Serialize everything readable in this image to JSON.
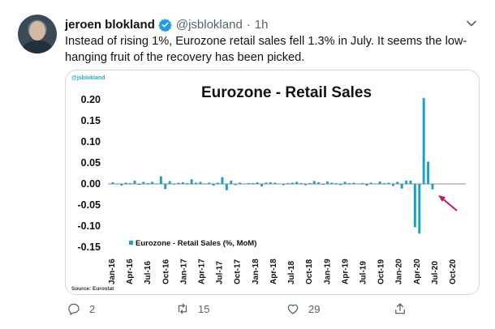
{
  "tweet": {
    "author_name": "jeroen blokland",
    "handle": "@jsblokland",
    "separator": "·",
    "time": "1h",
    "text": "Instead of rising 1%, Eurozone retail sales fell 1.3% in July. It seems the low-hanging fruit of the recovery has been picked."
  },
  "chart_card": {
    "watermark": "@jsblokland",
    "source": "Source: Eurostat"
  },
  "chart_data": {
    "type": "bar",
    "title": "Eurozone - Retail Sales",
    "xlabel": "",
    "ylabel": "",
    "ylim": [
      -0.15,
      0.2
    ],
    "yticks": [
      "0.20",
      "0.15",
      "0.10",
      "0.05",
      "0.00",
      "-0.05",
      "-0.10",
      "-0.15"
    ],
    "ytick_values": [
      0.2,
      0.15,
      0.1,
      0.05,
      0.0,
      -0.05,
      -0.1,
      -0.15
    ],
    "xtick_labels": [
      "Jan-16",
      "Apr-16",
      "Jul-16",
      "Oct-16",
      "Jan-17",
      "Apr-17",
      "Jul-17",
      "Oct-17",
      "Jan-18",
      "Apr-18",
      "Jul-18",
      "Oct-18",
      "Jan-19",
      "Apr-19",
      "Jul-19",
      "Oct-19",
      "Jan-20",
      "Apr-20",
      "Jul-20",
      "Oct-20"
    ],
    "legend": "Eurozone - Retail Sales (%, MoM)",
    "legend_position": "bottom-left",
    "grid": false,
    "bar_color": "#1aa3c4",
    "annotation_color": "#c0186b",
    "series": [
      {
        "name": "Eurozone - Retail Sales (%, MoM)",
        "values": [
          0.004,
          0.001,
          -0.004,
          0.003,
          0.002,
          0.008,
          -0.002,
          0.005,
          0.002,
          0.005,
          0.001,
          0.018,
          -0.012,
          0.007,
          0.0,
          0.003,
          0.004,
          0.002,
          0.011,
          0.003,
          0.005,
          0.001,
          0.003,
          -0.004,
          0.003,
          0.016,
          -0.015,
          0.008,
          -0.003,
          0.003,
          0.001,
          0.002,
          0.002,
          0.004,
          -0.006,
          0.003,
          0.004,
          0.003,
          0.001,
          -0.003,
          0.002,
          0.003,
          0.005,
          0.002,
          -0.003,
          0.002,
          0.007,
          0.004,
          -0.002,
          0.006,
          0.003,
          0.002,
          -0.003,
          0.005,
          0.002,
          0.003,
          0.001,
          0.002,
          -0.004,
          0.003,
          0.001,
          0.006,
          0.002,
          0.003,
          -0.005,
          0.005,
          -0.011,
          0.008,
          0.008,
          -0.103,
          -0.118,
          0.204,
          0.053,
          -0.013
        ]
      }
    ]
  },
  "actions": {
    "reply_count": "2",
    "retweet_count": "15",
    "like_count": "29"
  },
  "colors": {
    "verified": "#1d9bf0",
    "muted": "#536471"
  }
}
